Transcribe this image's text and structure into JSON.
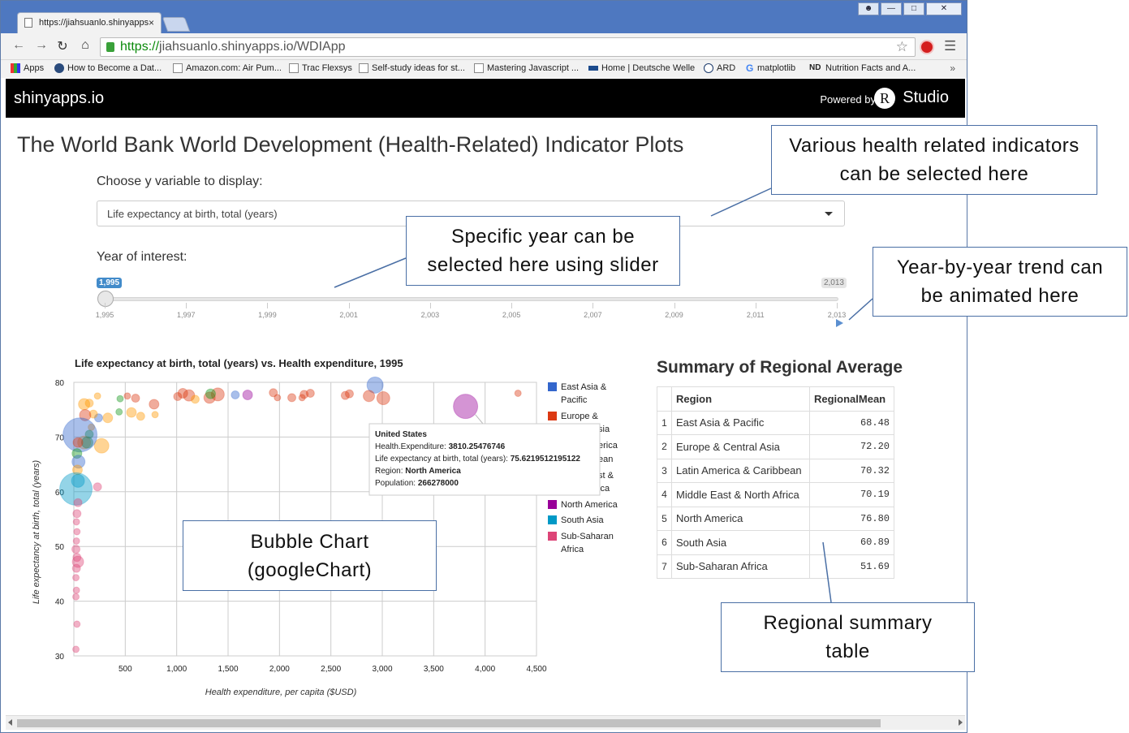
{
  "browser": {
    "tab_title": "https://jiahsuanlo.shinyapps",
    "tab_close": "×",
    "url_scheme": "https://",
    "url_rest": "jiahsuanlo.shinyapps.io/WDIApp",
    "bookmarks": [
      {
        "icon": "apps-grid-icon",
        "label": "Apps"
      },
      {
        "icon": "globe-icon",
        "label": "How to Become a Dat..."
      },
      {
        "icon": "page-icon",
        "label": "Amazon.com: Air Pum..."
      },
      {
        "icon": "page-icon",
        "label": "Trac Flexsys"
      },
      {
        "icon": "chart-icon",
        "label": "Self-study ideas for st..."
      },
      {
        "icon": "grid-icon",
        "label": "Mastering Javascript ..."
      },
      {
        "icon": "dw-icon",
        "label": "Home | Deutsche Welle"
      },
      {
        "icon": "ard-icon",
        "label": "ARD"
      },
      {
        "icon": "google-icon",
        "label": "matplotlib"
      },
      {
        "icon": "nd-icon",
        "label": "Nutrition Facts and A..."
      }
    ],
    "bookmarks_more": "»"
  },
  "appbar": {
    "brand": "shinyapps.io",
    "powered_by": "Powered by",
    "r_letter": "R",
    "studio": "Studio"
  },
  "page": {
    "title": "The World Bank World Development (Health-Related) Indicator Plots",
    "y_var_label": "Choose y variable to display:",
    "y_var_value": "Life expectancy at birth, total (years)",
    "year_label": "Year of interest:",
    "slider": {
      "value": "1,995",
      "max": "2,013",
      "ticks": [
        "1,995",
        "1,997",
        "1,999",
        "2,001",
        "2,003",
        "2,005",
        "2,007",
        "2,009",
        "2,011",
        "2,013"
      ]
    }
  },
  "chart_data": {
    "type": "scatter",
    "title": "Life expectancy at birth, total (years) vs. Health expenditure, 1995",
    "xlabel": "Health expenditure, per capita ($USD)",
    "ylabel": "Life expectancy at birth, total (years)",
    "xlim": [
      0,
      4500
    ],
    "ylim": [
      30,
      80
    ],
    "xticks": [
      "500",
      "1,000",
      "1,500",
      "2,000",
      "2,500",
      "3,000",
      "3,500",
      "4,000",
      "4,500"
    ],
    "yticks": [
      "80",
      "70",
      "60",
      "50",
      "40",
      "30"
    ],
    "legend": [
      {
        "name": "East Asia & Pacific",
        "color": "#3366cc"
      },
      {
        "name": "Europe & Central Asia",
        "color": "#dc3912"
      },
      {
        "name": "Latin America & Caribbean",
        "color": "#ff9900"
      },
      {
        "name": "Middle East & North Africa",
        "color": "#109618"
      },
      {
        "name": "North America",
        "color": "#990099"
      },
      {
        "name": "South Asia",
        "color": "#0099c6"
      },
      {
        "name": "Sub-Saharan Africa",
        "color": "#dd4477"
      }
    ],
    "legend_visible": {
      "east_asia_line1": "East Asia &",
      "east_asia_line2": "Pacific",
      "europe_line1": "Europe &",
      "frag_sia": "sia",
      "frag_erica": "erica",
      "frag_ean": "ean",
      "frag_st": "st &",
      "frag_ica": "ica",
      "north_america": "North America",
      "south_asia": "South Asia",
      "ssa_line1": "Sub-Saharan",
      "ssa_line2": "Africa"
    },
    "tooltip": {
      "title": "United States",
      "rows": [
        {
          "k": "Health.Expenditure:",
          "v": "3810.25476746"
        },
        {
          "k": "Life expectancy at birth, total (years):",
          "v": "75.6219512195122"
        },
        {
          "k": "Region:",
          "v": "North America"
        },
        {
          "k": "Population:",
          "v": "266278000"
        }
      ]
    },
    "points": [
      {
        "x": 3810,
        "y": 75.6,
        "r": 15,
        "region": "North America"
      },
      {
        "x": 2930,
        "y": 79.5,
        "r": 10,
        "region": "East Asia & Pacific"
      },
      {
        "x": 3010,
        "y": 77.1,
        "r": 8,
        "region": "Europe & Central Asia"
      },
      {
        "x": 2870,
        "y": 77.5,
        "r": 7,
        "region": "Europe & Central Asia"
      },
      {
        "x": 4320,
        "y": 78.0,
        "r": 4,
        "region": "Europe & Central Asia"
      },
      {
        "x": 2640,
        "y": 77.6,
        "r": 5,
        "region": "Europe & Central Asia"
      },
      {
        "x": 2680,
        "y": 77.9,
        "r": 5,
        "region": "Europe & Central Asia"
      },
      {
        "x": 2240,
        "y": 77.8,
        "r": 5,
        "region": "Europe & Central Asia"
      },
      {
        "x": 2300,
        "y": 78.0,
        "r": 5,
        "region": "Europe & Central Asia"
      },
      {
        "x": 2120,
        "y": 77.2,
        "r": 5,
        "region": "Europe & Central Asia"
      },
      {
        "x": 2220,
        "y": 77.2,
        "r": 4,
        "region": "Europe & Central Asia"
      },
      {
        "x": 1940,
        "y": 78.1,
        "r": 5,
        "region": "Europe & Central Asia"
      },
      {
        "x": 1980,
        "y": 77.2,
        "r": 4,
        "region": "Europe & Central Asia"
      },
      {
        "x": 1690,
        "y": 77.7,
        "r": 6,
        "region": "North America"
      },
      {
        "x": 1400,
        "y": 77.8,
        "r": 8,
        "region": "Europe & Central Asia"
      },
      {
        "x": 1320,
        "y": 77.2,
        "r": 7,
        "region": "Europe & Central Asia"
      },
      {
        "x": 1330,
        "y": 77.9,
        "r": 6,
        "region": "Middle East & North Africa"
      },
      {
        "x": 1120,
        "y": 77.6,
        "r": 7,
        "region": "Europe & Central Asia"
      },
      {
        "x": 1060,
        "y": 78.0,
        "r": 6,
        "region": "Europe & Central Asia"
      },
      {
        "x": 1010,
        "y": 77.4,
        "r": 5,
        "region": "Europe & Central Asia"
      },
      {
        "x": 1180,
        "y": 76.9,
        "r": 5,
        "region": "Latin America & Caribbean"
      },
      {
        "x": 1570,
        "y": 77.7,
        "r": 5,
        "region": "East Asia & Pacific"
      },
      {
        "x": 780,
        "y": 76.0,
        "r": 6,
        "region": "Europe & Central Asia"
      },
      {
        "x": 600,
        "y": 77.1,
        "r": 5,
        "region": "Europe & Central Asia"
      },
      {
        "x": 520,
        "y": 77.5,
        "r": 4,
        "region": "Europe & Central Asia"
      },
      {
        "x": 450,
        "y": 77.0,
        "r": 4,
        "region": "Middle East & North Africa"
      },
      {
        "x": 230,
        "y": 77.5,
        "r": 4,
        "region": "Latin America & Caribbean"
      },
      {
        "x": 790,
        "y": 74.1,
        "r": 4,
        "region": "Latin America & Caribbean"
      },
      {
        "x": 650,
        "y": 73.8,
        "r": 5,
        "region": "Latin America & Caribbean"
      },
      {
        "x": 560,
        "y": 74.5,
        "r": 6,
        "region": "Latin America & Caribbean"
      },
      {
        "x": 440,
        "y": 74.6,
        "r": 4,
        "region": "Middle East & North Africa"
      },
      {
        "x": 330,
        "y": 73.5,
        "r": 6,
        "region": "Latin America & Caribbean"
      },
      {
        "x": 240,
        "y": 73.5,
        "r": 5,
        "region": "East Asia & Pacific"
      },
      {
        "x": 190,
        "y": 74.2,
        "r": 5,
        "region": "Latin America & Caribbean"
      },
      {
        "x": 170,
        "y": 71.8,
        "r": 4,
        "region": "Latin America & Caribbean"
      },
      {
        "x": 150,
        "y": 76.2,
        "r": 5,
        "region": "Latin America & Caribbean"
      },
      {
        "x": 100,
        "y": 76.0,
        "r": 7,
        "region": "Latin America & Caribbean"
      },
      {
        "x": 110,
        "y": 74.0,
        "r": 7,
        "region": "Europe & Central Asia"
      },
      {
        "x": 150,
        "y": 70.5,
        "r": 5,
        "region": "Middle East & North Africa"
      },
      {
        "x": 100,
        "y": 69.0,
        "r": 8,
        "region": "Latin America & Caribbean"
      },
      {
        "x": 270,
        "y": 68.4,
        "r": 9,
        "region": "Latin America & Caribbean"
      },
      {
        "x": 130,
        "y": 69.0,
        "r": 7,
        "region": "Middle East & North Africa"
      },
      {
        "x": 60,
        "y": 70.4,
        "r": 21,
        "region": "East Asia & Pacific"
      },
      {
        "x": 40,
        "y": 69.0,
        "r": 6,
        "region": "Europe & Central Asia"
      },
      {
        "x": 30,
        "y": 67.0,
        "r": 6,
        "region": "Middle East & North Africa"
      },
      {
        "x": 45,
        "y": 65.5,
        "r": 8,
        "region": "East Asia & Pacific"
      },
      {
        "x": 35,
        "y": 64.0,
        "r": 6,
        "region": "Latin America & Caribbean"
      },
      {
        "x": 40,
        "y": 62.0,
        "r": 8,
        "region": "South Asia"
      },
      {
        "x": 20,
        "y": 60.5,
        "r": 20,
        "region": "South Asia"
      },
      {
        "x": 230,
        "y": 60.9,
        "r": 5,
        "region": "Sub-Saharan Africa"
      },
      {
        "x": 40,
        "y": 58.0,
        "r": 5,
        "region": "Sub-Saharan Africa"
      },
      {
        "x": 30,
        "y": 56.0,
        "r": 5,
        "region": "Sub-Saharan Africa"
      },
      {
        "x": 25,
        "y": 54.5,
        "r": 4,
        "region": "Sub-Saharan Africa"
      },
      {
        "x": 30,
        "y": 52.7,
        "r": 4,
        "region": "Sub-Saharan Africa"
      },
      {
        "x": 25,
        "y": 51.0,
        "r": 4,
        "region": "Sub-Saharan Africa"
      },
      {
        "x": 20,
        "y": 49.5,
        "r": 5,
        "region": "Sub-Saharan Africa"
      },
      {
        "x": 30,
        "y": 48.0,
        "r": 5,
        "region": "Sub-Saharan Africa"
      },
      {
        "x": 40,
        "y": 47.2,
        "r": 7,
        "region": "Sub-Saharan Africa"
      },
      {
        "x": 25,
        "y": 46.0,
        "r": 5,
        "region": "Sub-Saharan Africa"
      },
      {
        "x": 20,
        "y": 44.3,
        "r": 4,
        "region": "Sub-Saharan Africa"
      },
      {
        "x": 25,
        "y": 42.0,
        "r": 4,
        "region": "Sub-Saharan Africa"
      },
      {
        "x": 20,
        "y": 40.8,
        "r": 4,
        "region": "Sub-Saharan Africa"
      },
      {
        "x": 30,
        "y": 35.8,
        "r": 4,
        "region": "Sub-Saharan Africa"
      },
      {
        "x": 20,
        "y": 31.2,
        "r": 4,
        "region": "Sub-Saharan Africa"
      }
    ]
  },
  "summary": {
    "title": "Summary of Regional Average",
    "columns": [
      "",
      "Region",
      "RegionalMean"
    ],
    "rows": [
      {
        "idx": "1",
        "region": "East Asia & Pacific",
        "mean": "68.48"
      },
      {
        "idx": "2",
        "region": "Europe & Central Asia",
        "mean": "72.20"
      },
      {
        "idx": "3",
        "region": "Latin America & Caribbean",
        "mean": "70.32"
      },
      {
        "idx": "4",
        "region": "Middle East & North Africa",
        "mean": "70.19"
      },
      {
        "idx": "5",
        "region": "North America",
        "mean": "76.80"
      },
      {
        "idx": "6",
        "region": "South Asia",
        "mean": "60.89"
      },
      {
        "idx": "7",
        "region": "Sub-Saharan Africa",
        "mean": "51.69"
      }
    ]
  },
  "callouts": {
    "indicators": "Various health related indicators can be selected here",
    "year": "Specific year can be selected here using slider",
    "animate": "Year-by-year trend can be animated here",
    "bubble": "Bubble Chart (googleChart)",
    "table": "Regional summary table"
  }
}
